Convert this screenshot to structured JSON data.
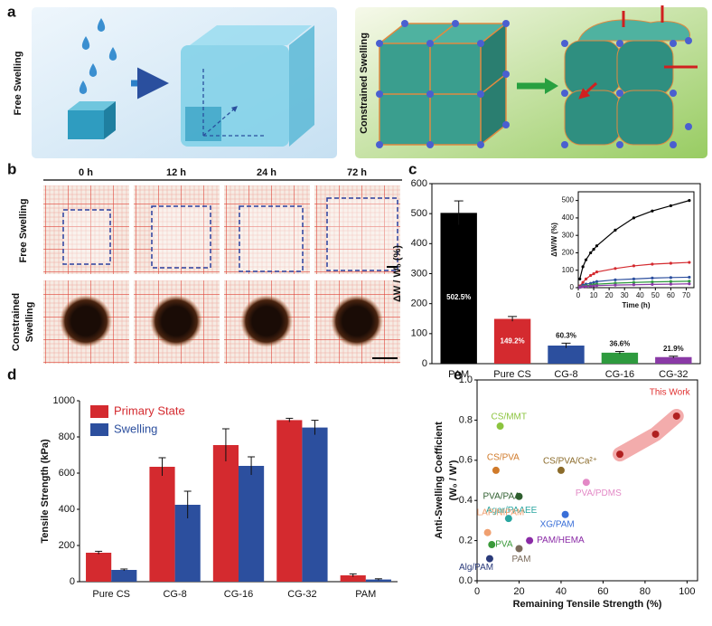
{
  "panels": [
    "a",
    "b",
    "c",
    "d",
    "e"
  ],
  "panel_a": {
    "left_label": "Free Swelling",
    "right_label": "Constrained Swelling"
  },
  "panel_b": {
    "columns": [
      "0 h",
      "12 h",
      "24 h",
      "72 h"
    ],
    "free_label": "Free Swelling",
    "constrained_label": [
      "Constrained",
      "Swelling"
    ]
  },
  "chart_data": [
    {
      "type": "bar",
      "y_label": "ΔW / W₀ (%)",
      "categories": [
        "PAM",
        "Pure CS",
        "CG-8",
        "CG-16",
        "CG-32"
      ],
      "values": [
        502.5,
        149.2,
        60.3,
        36.6,
        21.9
      ],
      "value_labels": [
        "502.5%",
        "149.2%",
        "60.3%",
        "36.6%",
        "21.9%"
      ],
      "errors": [
        40,
        8,
        8,
        4,
        3
      ],
      "colors": [
        "#000000",
        "#d42a2f",
        "#2c4f9e",
        "#2e9a3e",
        "#8a3aa6"
      ],
      "ylim": [
        0,
        600
      ],
      "yticks": [
        0,
        100,
        200,
        300,
        400,
        500,
        600
      ]
    },
    {
      "type": "line",
      "x_label": "Time (h)",
      "y_label": "ΔW/W (%)",
      "x": [
        1,
        3,
        5,
        8,
        10,
        12,
        24,
        36,
        48,
        60,
        72
      ],
      "xlim": [
        0,
        75
      ],
      "xticks": [
        0,
        10,
        20,
        30,
        40,
        50,
        60,
        70
      ],
      "ylim": [
        0,
        550
      ],
      "yticks": [
        0,
        100,
        200,
        300,
        400,
        500
      ],
      "series": [
        {
          "color": "#000000",
          "values": [
            50,
            120,
            160,
            200,
            220,
            240,
            330,
            400,
            440,
            470,
            500
          ]
        },
        {
          "color": "#d42a2f",
          "values": [
            10,
            30,
            50,
            70,
            80,
            90,
            110,
            125,
            135,
            140,
            145
          ]
        },
        {
          "color": "#2c4f9e",
          "values": [
            5,
            15,
            20,
            25,
            30,
            35,
            45,
            50,
            55,
            58,
            60
          ]
        },
        {
          "color": "#2e9a3e",
          "values": [
            3,
            8,
            12,
            15,
            18,
            20,
            26,
            30,
            33,
            35,
            37
          ]
        },
        {
          "color": "#8a3aa6",
          "values": [
            2,
            5,
            7,
            9,
            10,
            12,
            15,
            17,
            19,
            20,
            22
          ]
        }
      ]
    },
    {
      "type": "grouped_bar",
      "y_label": "Tensile Strength (kPa)",
      "categories": [
        "Pure CS",
        "CG-8",
        "CG-16",
        "CG-32",
        "PAM"
      ],
      "ylim": [
        0,
        1000
      ],
      "yticks": [
        0,
        200,
        400,
        600,
        800,
        1000
      ],
      "legend": "upper left",
      "series": [
        {
          "name": "Primary State",
          "color": "#d42a2f",
          "values": [
            160,
            635,
            755,
            893,
            35
          ],
          "errors": [
            8,
            50,
            90,
            10,
            8
          ]
        },
        {
          "name": "Swelling",
          "color": "#2c4f9e",
          "values": [
            65,
            425,
            640,
            852,
            12
          ],
          "errors": [
            5,
            75,
            50,
            40,
            4
          ]
        }
      ]
    },
    {
      "type": "scatter",
      "x_label": "Remaining Tensile Strength (%)",
      "y_label": [
        "Anti-Swelling Coefficient",
        "(W₀ / W')"
      ],
      "xlim": [
        0,
        105
      ],
      "xticks": [
        0,
        20,
        40,
        60,
        80,
        100
      ],
      "ylim": [
        0,
        1
      ],
      "yticks": [
        {
          "value": 0,
          "label": "0.0"
        },
        0.2,
        0.4,
        0.6,
        0.8,
        {
          "value": 1,
          "label": "1.0"
        }
      ],
      "series": [
        {
          "name": "CS/MMT",
          "color": "#8cc43f",
          "x": [
            11
          ],
          "values": [
            0.77
          ]
        },
        {
          "name": "CS/PVA",
          "color": "#d07a2a",
          "x": [
            9
          ],
          "values": [
            0.55
          ]
        },
        {
          "name": "CS/PVA/Ca²⁺",
          "color": "#8b6b2a",
          "x": [
            40
          ],
          "values": [
            0.55
          ]
        },
        {
          "name": "PVA/PDMS",
          "color": "#e389c6",
          "x": [
            52
          ],
          "values": [
            0.49
          ]
        },
        {
          "name": "PVA/PAA",
          "color": "#2e5e2e",
          "x": [
            20
          ],
          "values": [
            0.42
          ]
        },
        {
          "name": "Agar/PAAEE",
          "color": "#2aa6a0",
          "x": [
            15
          ],
          "values": [
            0.31
          ]
        },
        {
          "name": "XG/PAM",
          "color": "#3a6fd8",
          "x": [
            42
          ],
          "values": [
            0.33
          ]
        },
        {
          "name": "LAP/NIPAM",
          "color": "#f0a070",
          "x": [
            5
          ],
          "values": [
            0.24
          ]
        },
        {
          "name": "PVA",
          "color": "#3a9a3a",
          "x": [
            7
          ],
          "values": [
            0.18
          ]
        },
        {
          "name": "PAM/HEMA",
          "color": "#8a2aa6",
          "x": [
            25
          ],
          "values": [
            0.2
          ]
        },
        {
          "name": "PAM",
          "color": "#7a6a5a",
          "x": [
            20
          ],
          "values": [
            0.16
          ]
        },
        {
          "name": "Alg/PAM",
          "color": "#2a3a7a",
          "x": [
            6
          ],
          "values": [
            0.11
          ]
        },
        {
          "name": "This Work",
          "color": "#e03030",
          "x": [
            68,
            85,
            95
          ],
          "values": [
            0.63,
            0.73,
            0.82
          ]
        }
      ]
    }
  ]
}
